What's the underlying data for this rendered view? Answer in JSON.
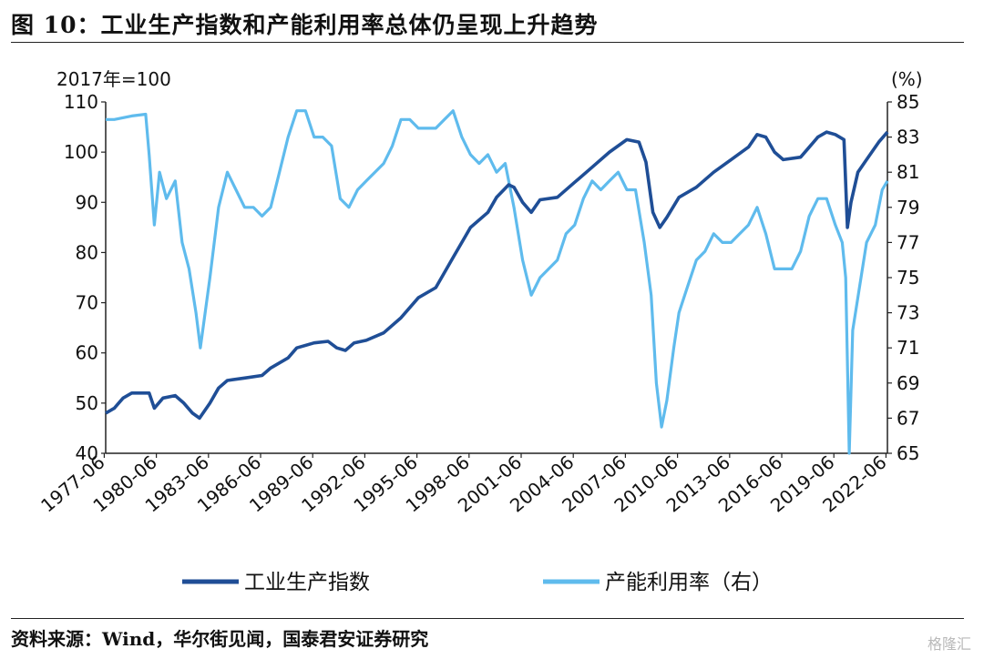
{
  "figure": {
    "title": "图 10：工业生产指数和产能利用率总体仍呈现上升趋势",
    "source": "资料来源：Wind，华尔街见闻，国泰君安证券研究",
    "watermark": "格隆汇"
  },
  "chart_data": {
    "type": "line",
    "title": "",
    "y_left_unit": "2017年=100",
    "y_right_unit": "(%)",
    "y_left_range": [
      40,
      110
    ],
    "y_left_ticks": [
      110,
      100,
      90,
      80,
      70,
      60,
      50,
      40
    ],
    "y_right_range": [
      65,
      85
    ],
    "y_right_ticks": [
      85,
      83,
      81,
      79,
      77,
      75,
      73,
      71,
      69,
      67,
      65
    ],
    "x_range": [
      1977.5,
      2022.5
    ],
    "x_ticks": [
      "1977-06",
      "1980-06",
      "1983-06",
      "1986-06",
      "1989-06",
      "1992-06",
      "1995-06",
      "1998-06",
      "2001-06",
      "2004-06",
      "2007-06",
      "2010-06",
      "2013-06",
      "2016-06",
      "2019-06",
      "2022-06"
    ],
    "grid": false,
    "legend_position": "bottom",
    "series": [
      {
        "name": "工业生产指数",
        "axis": "left",
        "color": "#1f4e96",
        "points": [
          [
            1977.5,
            48
          ],
          [
            1978.0,
            49
          ],
          [
            1978.5,
            51
          ],
          [
            1979.0,
            52
          ],
          [
            1979.5,
            52
          ],
          [
            1980.0,
            52
          ],
          [
            1980.3,
            49
          ],
          [
            1980.8,
            51
          ],
          [
            1981.5,
            51.5
          ],
          [
            1982.0,
            50
          ],
          [
            1982.5,
            48
          ],
          [
            1982.9,
            47
          ],
          [
            1983.5,
            50
          ],
          [
            1984.0,
            53
          ],
          [
            1984.5,
            54.5
          ],
          [
            1985.5,
            55
          ],
          [
            1986.5,
            55.5
          ],
          [
            1987.0,
            57
          ],
          [
            1988.0,
            59
          ],
          [
            1988.5,
            61
          ],
          [
            1989.5,
            62
          ],
          [
            1990.3,
            62.3
          ],
          [
            1990.8,
            61
          ],
          [
            1991.3,
            60.5
          ],
          [
            1991.8,
            62
          ],
          [
            1992.5,
            62.5
          ],
          [
            1993.5,
            64
          ],
          [
            1994.5,
            67
          ],
          [
            1995.5,
            71
          ],
          [
            1996.5,
            73
          ],
          [
            1997.5,
            79
          ],
          [
            1998.5,
            85
          ],
          [
            1999.5,
            88
          ],
          [
            2000.0,
            91
          ],
          [
            2000.7,
            93.5
          ],
          [
            2001.0,
            93
          ],
          [
            2001.5,
            90
          ],
          [
            2002.0,
            88
          ],
          [
            2002.5,
            90.5
          ],
          [
            2003.5,
            91
          ],
          [
            2004.5,
            94
          ],
          [
            2005.5,
            97
          ],
          [
            2006.5,
            100
          ],
          [
            2007.5,
            102.5
          ],
          [
            2008.2,
            102
          ],
          [
            2008.6,
            98
          ],
          [
            2009.0,
            88
          ],
          [
            2009.4,
            85
          ],
          [
            2009.8,
            87
          ],
          [
            2010.5,
            91
          ],
          [
            2011.5,
            93
          ],
          [
            2012.5,
            96
          ],
          [
            2013.5,
            98.5
          ],
          [
            2014.5,
            101
          ],
          [
            2015.0,
            103.5
          ],
          [
            2015.5,
            103
          ],
          [
            2016.0,
            100
          ],
          [
            2016.5,
            98.5
          ],
          [
            2017.5,
            99
          ],
          [
            2018.5,
            103
          ],
          [
            2019.0,
            104
          ],
          [
            2019.5,
            103.5
          ],
          [
            2020.0,
            102.5
          ],
          [
            2020.2,
            85
          ],
          [
            2020.4,
            90
          ],
          [
            2020.8,
            96
          ],
          [
            2021.3,
            98.5
          ],
          [
            2022.0,
            102
          ],
          [
            2022.5,
            104
          ]
        ]
      },
      {
        "name": "产能利用率（右）",
        "axis": "right",
        "color": "#5fbbed",
        "points": [
          [
            1977.5,
            84
          ],
          [
            1978.0,
            84
          ],
          [
            1979.0,
            84.2
          ],
          [
            1979.8,
            84.3
          ],
          [
            1980.0,
            82
          ],
          [
            1980.3,
            78
          ],
          [
            1980.6,
            81
          ],
          [
            1981.0,
            79.5
          ],
          [
            1981.5,
            80.5
          ],
          [
            1981.9,
            77
          ],
          [
            1982.3,
            75.5
          ],
          [
            1982.7,
            73
          ],
          [
            1982.95,
            71
          ],
          [
            1983.5,
            75
          ],
          [
            1984.0,
            79
          ],
          [
            1984.5,
            81
          ],
          [
            1985.0,
            80
          ],
          [
            1985.5,
            79
          ],
          [
            1986.0,
            79
          ],
          [
            1986.5,
            78.5
          ],
          [
            1987.0,
            79
          ],
          [
            1987.5,
            81
          ],
          [
            1988.0,
            83
          ],
          [
            1988.5,
            84.5
          ],
          [
            1989.0,
            84.5
          ],
          [
            1989.5,
            83
          ],
          [
            1990.0,
            83
          ],
          [
            1990.5,
            82.5
          ],
          [
            1991.0,
            79.5
          ],
          [
            1991.5,
            79
          ],
          [
            1992.0,
            80
          ],
          [
            1992.5,
            80.5
          ],
          [
            1993.0,
            81
          ],
          [
            1993.5,
            81.5
          ],
          [
            1994.0,
            82.5
          ],
          [
            1994.5,
            84
          ],
          [
            1995.0,
            84
          ],
          [
            1995.5,
            83.5
          ],
          [
            1996.0,
            83.5
          ],
          [
            1996.5,
            83.5
          ],
          [
            1997.0,
            84
          ],
          [
            1997.5,
            84.5
          ],
          [
            1998.0,
            83
          ],
          [
            1998.5,
            82
          ],
          [
            1999.0,
            81.5
          ],
          [
            1999.5,
            82
          ],
          [
            2000.0,
            81
          ],
          [
            2000.5,
            81.5
          ],
          [
            2001.0,
            79
          ],
          [
            2001.5,
            76
          ],
          [
            2002.0,
            74
          ],
          [
            2002.5,
            75
          ],
          [
            2003.0,
            75.5
          ],
          [
            2003.5,
            76
          ],
          [
            2004.0,
            77.5
          ],
          [
            2004.5,
            78
          ],
          [
            2005.0,
            79.5
          ],
          [
            2005.5,
            80.5
          ],
          [
            2006.0,
            80
          ],
          [
            2006.5,
            80.5
          ],
          [
            2007.0,
            81
          ],
          [
            2007.5,
            80
          ],
          [
            2008.0,
            80
          ],
          [
            2008.5,
            77
          ],
          [
            2008.9,
            74
          ],
          [
            2009.2,
            69
          ],
          [
            2009.5,
            66.5
          ],
          [
            2009.8,
            68
          ],
          [
            2010.2,
            71
          ],
          [
            2010.5,
            73
          ],
          [
            2011.0,
            74.5
          ],
          [
            2011.5,
            76
          ],
          [
            2012.0,
            76.5
          ],
          [
            2012.5,
            77.5
          ],
          [
            2013.0,
            77
          ],
          [
            2013.5,
            77
          ],
          [
            2014.0,
            77.5
          ],
          [
            2014.5,
            78
          ],
          [
            2015.0,
            79
          ],
          [
            2015.5,
            77.5
          ],
          [
            2016.0,
            75.5
          ],
          [
            2016.5,
            75.5
          ],
          [
            2017.0,
            75.5
          ],
          [
            2017.5,
            76.5
          ],
          [
            2018.0,
            78.5
          ],
          [
            2018.5,
            79.5
          ],
          [
            2019.0,
            79.5
          ],
          [
            2019.5,
            78
          ],
          [
            2019.9,
            77
          ],
          [
            2020.1,
            75
          ],
          [
            2020.3,
            65
          ],
          [
            2020.5,
            72
          ],
          [
            2020.9,
            74.5
          ],
          [
            2021.3,
            77
          ],
          [
            2021.8,
            78
          ],
          [
            2022.2,
            80
          ],
          [
            2022.5,
            80.5
          ]
        ]
      }
    ]
  }
}
